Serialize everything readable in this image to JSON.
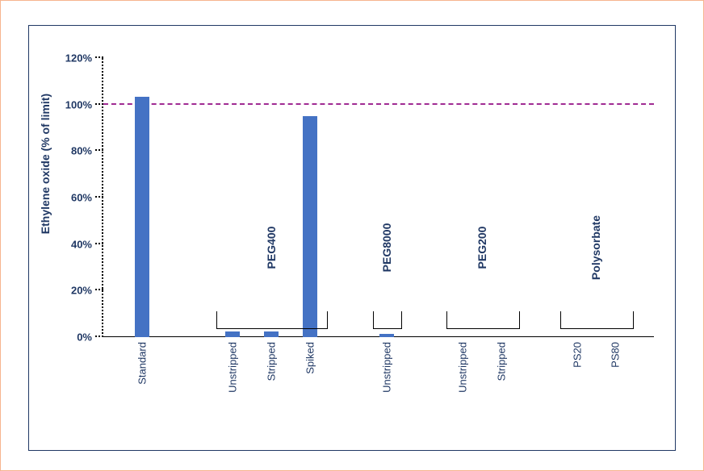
{
  "chart": {
    "type": "bar",
    "ylabel": "Ethylene oxide (% of limit)",
    "ylim": [
      0,
      120
    ],
    "ytick_step": 20,
    "ytick_suffix": "%",
    "background_color": "#ffffff",
    "frame_color": "#203864",
    "outer_border_color": "#f7b48f",
    "bar_color": "#4472c4",
    "text_color": "#203864",
    "reference_line": {
      "value": 100,
      "color": "#a02b93",
      "style": "dashed"
    },
    "bar_width_pct": 2.6,
    "label_fontsize": 13,
    "ylabel_fontsize": 14,
    "group_label_fontsize": 14,
    "bars": [
      {
        "x": 7.0,
        "label": "Standard",
        "value": 103.5
      },
      {
        "x": 23.5,
        "label": "Unstripped",
        "value": 2.5
      },
      {
        "x": 30.5,
        "label": "Stripped",
        "value": 2.5
      },
      {
        "x": 37.5,
        "label": "Spiked",
        "value": 95
      },
      {
        "x": 51.5,
        "label": "Unstripped",
        "value": 1.5
      },
      {
        "x": 65.3,
        "label": "Unstripped",
        "value": 0
      },
      {
        "x": 72.3,
        "label": "Stripped",
        "value": 0
      },
      {
        "x": 86.0,
        "label": "PS20",
        "value": 0
      },
      {
        "x": 93.0,
        "label": "PS80",
        "value": 0
      }
    ],
    "groups": [
      {
        "label": "PEG400",
        "x_start": 20.5,
        "x_end": 40.5,
        "bracket_height": 12
      },
      {
        "label": "PEG8000",
        "x_start": 49.0,
        "x_end": 54.0,
        "bracket_height": 12
      },
      {
        "label": "PEG200",
        "x_start": 62.3,
        "x_end": 75.3,
        "bracket_height": 12
      },
      {
        "label": "Polysorbate",
        "x_start": 83.0,
        "x_end": 96.0,
        "bracket_height": 12
      }
    ]
  }
}
